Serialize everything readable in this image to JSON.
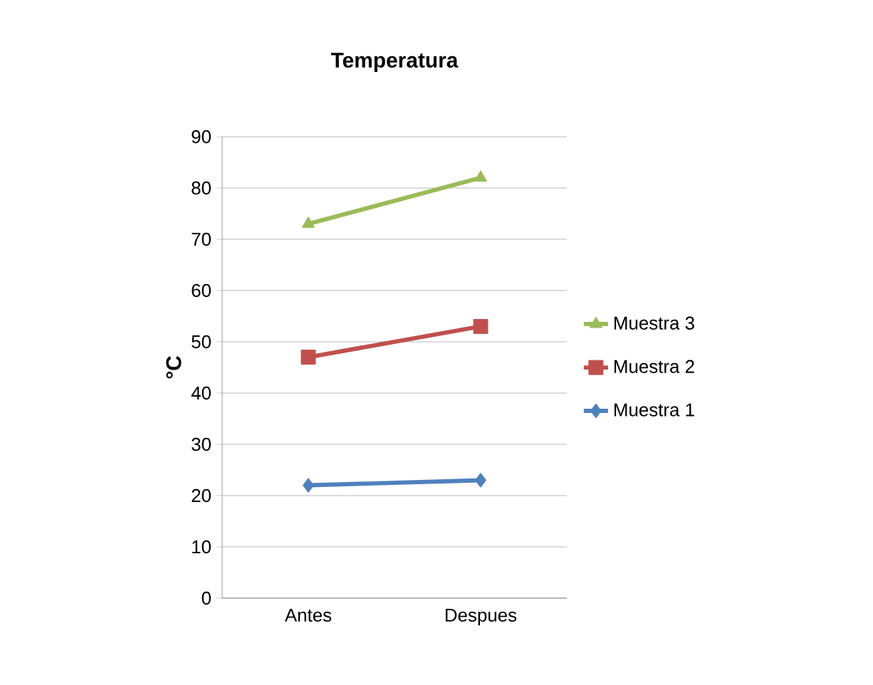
{
  "chart_data": {
    "type": "line",
    "title": "Temperatura",
    "ylabel": "°C",
    "categories": [
      "Antes",
      "Despues"
    ],
    "series": [
      {
        "name": "Muestra 1",
        "color": "#4f81bd",
        "values": [
          22,
          23
        ],
        "marker": "diamond"
      },
      {
        "name": "Muestra 2",
        "color": "#c0504d",
        "values": [
          47,
          53
        ],
        "marker": "square"
      },
      {
        "name": "Muestra 3",
        "color": "#9bbb59",
        "values": [
          73,
          82
        ],
        "marker": "triangle"
      }
    ],
    "ylim": [
      0,
      90
    ],
    "yticks": [
      0,
      10,
      20,
      30,
      40,
      50,
      60,
      70,
      80,
      90
    ],
    "grid": "y",
    "legend": "right",
    "line_style": "solid"
  }
}
